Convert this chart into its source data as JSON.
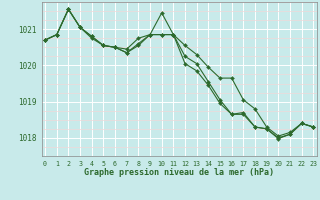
{
  "line1": {
    "x": [
      0,
      1,
      2,
      3,
      4,
      5,
      6,
      7,
      8,
      9,
      10,
      11,
      12,
      13,
      14,
      15,
      16,
      17,
      18,
      19,
      20,
      21,
      22,
      23
    ],
    "y": [
      1020.7,
      1020.85,
      1021.55,
      1021.05,
      1020.8,
      1020.55,
      1020.5,
      1020.45,
      1020.75,
      1020.85,
      1021.45,
      1020.85,
      1020.55,
      1020.3,
      1019.95,
      1019.65,
      1019.65,
      1019.05,
      1018.8,
      1018.3,
      1018.05,
      1018.15,
      1018.4,
      1018.3
    ]
  },
  "line2": {
    "x": [
      0,
      1,
      2,
      3,
      4,
      5,
      6,
      7,
      8,
      9,
      10,
      11,
      12,
      13,
      14,
      15,
      16,
      17,
      18,
      19,
      20,
      21,
      22,
      23
    ],
    "y": [
      1020.7,
      1020.85,
      1021.55,
      1021.05,
      1020.8,
      1020.55,
      1020.5,
      1020.35,
      1020.6,
      1020.85,
      1020.85,
      1020.85,
      1020.25,
      1020.05,
      1019.55,
      1019.05,
      1018.65,
      1018.65,
      1018.3,
      1018.25,
      1017.98,
      1018.1,
      1018.4,
      1018.3
    ]
  },
  "line3": {
    "x": [
      0,
      1,
      2,
      3,
      4,
      5,
      6,
      7,
      8,
      9,
      10,
      11,
      12,
      13,
      14,
      15,
      16,
      17,
      18,
      19,
      20,
      21,
      22,
      23
    ],
    "y": [
      1020.7,
      1020.85,
      1021.55,
      1021.05,
      1020.75,
      1020.55,
      1020.5,
      1020.35,
      1020.55,
      1020.85,
      1020.85,
      1020.85,
      1020.05,
      1019.85,
      1019.45,
      1018.95,
      1018.65,
      1018.7,
      1018.3,
      1018.25,
      1018.0,
      1018.1,
      1018.4,
      1018.3
    ]
  },
  "background_color": "#c8eaea",
  "plot_bg_color": "#c8eaea",
  "line_color": "#2d6a2d",
  "grid_major_color": "#ffffff",
  "grid_minor_color": "#f0d8d8",
  "xlabel": "Graphe pression niveau de la mer (hPa)",
  "yticks": [
    1018,
    1019,
    1020,
    1021
  ],
  "xticks": [
    0,
    1,
    2,
    3,
    4,
    5,
    6,
    7,
    8,
    9,
    10,
    11,
    12,
    13,
    14,
    15,
    16,
    17,
    18,
    19,
    20,
    21,
    22,
    23
  ],
  "ylim": [
    1017.5,
    1021.75
  ],
  "xlim": [
    -0.3,
    23.3
  ]
}
